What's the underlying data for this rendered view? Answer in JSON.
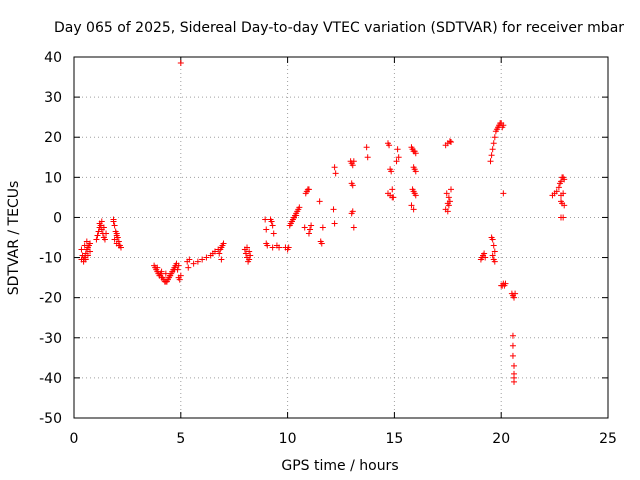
{
  "chart_data": {
    "type": "scatter",
    "title": "Day 065 of 2025, Sidereal Day-to-day VTEC variation (SDTVAR) for receiver mbar",
    "xlabel": "GPS time / hours",
    "ylabel": "SDTVAR / TECUs",
    "xlim": [
      0,
      25
    ],
    "ylim": [
      -50,
      40
    ],
    "xticks": [
      0,
      5,
      10,
      15,
      20,
      25
    ],
    "yticks": [
      -50,
      -40,
      -30,
      -20,
      -10,
      0,
      10,
      20,
      30,
      40
    ],
    "grid": true,
    "marker": "plus",
    "color": "#ff0000",
    "series": [
      {
        "name": "SDTVAR",
        "x": [
          0.35,
          0.4,
          0.45,
          0.5,
          0.55,
          0.6,
          0.65,
          0.7,
          0.75,
          0.35,
          0.45,
          0.55,
          0.65,
          0.75,
          0.5,
          0.6,
          1.05,
          1.1,
          1.15,
          1.2,
          1.25,
          1.3,
          1.35,
          1.4,
          1.45,
          1.2,
          1.3,
          1.4,
          1.5,
          1.85,
          1.9,
          1.95,
          2.0,
          2.05,
          2.1,
          2.15,
          2.2,
          1.9,
          2.0,
          2.1,
          1.85,
          2.0,
          3.75,
          3.8,
          3.85,
          3.9,
          3.95,
          4.0,
          4.05,
          4.1,
          4.15,
          4.2,
          4.25,
          4.3,
          4.35,
          4.4,
          4.45,
          4.5,
          4.55,
          4.6,
          4.65,
          4.7,
          4.75,
          4.8,
          4.85,
          4.9,
          4.95,
          5.0,
          3.9,
          4.1,
          4.3,
          4.5,
          4.7,
          4.9,
          5.3,
          5.35,
          5.4,
          5.6,
          5.8,
          6.0,
          6.2,
          6.4,
          6.5,
          6.6,
          6.75,
          6.85,
          6.9,
          6.95,
          7.0,
          6.8,
          6.9,
          8.0,
          8.05,
          8.1,
          8.15,
          8.2,
          8.25,
          8.1,
          8.2,
          8.95,
          9.0,
          9.05,
          9.2,
          9.25,
          9.3,
          9.35,
          9.0,
          9.3,
          9.5,
          9.6,
          9.9,
          10.0,
          10.05,
          10.1,
          10.15,
          10.2,
          10.25,
          10.3,
          10.35,
          10.4,
          10.45,
          10.5,
          10.55,
          10.2,
          10.4,
          10.85,
          10.9,
          10.95,
          11.0,
          10.8,
          11.0,
          11.1,
          11.05,
          11.5,
          11.55,
          11.6,
          11.65,
          12.15,
          12.2,
          12.25,
          12.2,
          12.95,
          13.0,
          13.05,
          13.1,
          13.0,
          13.05,
          13.0,
          13.05,
          13.1,
          13.7,
          13.75,
          14.7,
          14.75,
          14.8,
          14.85,
          14.9,
          14.95,
          14.7,
          14.8,
          14.9,
          15.1,
          15.2,
          15.15,
          15.8,
          15.85,
          15.9,
          15.95,
          16.0,
          15.9,
          15.95,
          16.0,
          15.85,
          15.9,
          15.95,
          16.0,
          15.8,
          15.9,
          17.4,
          17.5,
          17.6,
          17.65,
          17.45,
          17.55,
          17.6,
          17.5,
          17.55,
          17.65,
          17.4,
          17.5,
          19.05,
          19.1,
          19.15,
          19.2,
          19.25,
          19.5,
          19.55,
          19.6,
          19.65,
          19.7,
          19.75,
          19.8,
          19.85,
          19.9,
          19.95,
          20.0,
          20.05,
          20.1,
          19.55,
          19.6,
          19.65,
          19.7,
          19.6,
          19.65,
          19.7,
          20.0,
          20.05,
          20.1,
          20.15,
          20.2,
          20.1,
          20.5,
          20.55,
          20.6,
          20.65,
          20.55,
          20.55,
          20.55,
          20.6,
          20.6,
          20.6,
          20.6,
          22.4,
          22.5,
          22.6,
          22.7,
          22.75,
          22.8,
          22.85,
          22.9,
          22.95,
          22.8,
          22.9,
          22.8,
          22.85,
          22.95,
          22.8,
          22.9,
          5.0
        ],
        "y": [
          -8.0,
          -9.5,
          -10.5,
          -10.0,
          -9.0,
          -8.0,
          -7.5,
          -7.0,
          -6.5,
          -10.5,
          -11.0,
          -10.5,
          -9.5,
          -8.5,
          -7.0,
          -6.0,
          -5.5,
          -4.5,
          -3.5,
          -2.5,
          -2.0,
          -3.0,
          -4.0,
          -5.0,
          -5.5,
          -1.5,
          -1.0,
          -2.5,
          -4.0,
          -1.0,
          -2.0,
          -3.5,
          -4.5,
          -5.0,
          -6.0,
          -7.0,
          -7.5,
          -5.5,
          -6.5,
          -7.0,
          -0.5,
          -4.0,
          -12.0,
          -12.5,
          -13.0,
          -13.5,
          -14.0,
          -14.5,
          -14.0,
          -15.0,
          -15.0,
          -15.5,
          -16.0,
          -16.0,
          -16.0,
          -15.5,
          -15.0,
          -14.5,
          -14.0,
          -13.5,
          -13.0,
          -12.5,
          -12.0,
          -11.5,
          -13.0,
          -15.0,
          -15.5,
          -14.5,
          -12.5,
          -13.5,
          -14.0,
          -14.5,
          -13.0,
          -12.0,
          -11.0,
          -12.5,
          -10.5,
          -11.5,
          -11.0,
          -10.5,
          -10.0,
          -9.5,
          -9.0,
          -8.5,
          -8.0,
          -8.0,
          -7.5,
          -7.0,
          -6.5,
          -9.0,
          -10.5,
          -8.0,
          -9.0,
          -10.0,
          -11.0,
          -10.5,
          -9.5,
          -7.5,
          -8.5,
          -0.5,
          -3.0,
          -7.0,
          -0.5,
          -1.0,
          -2.0,
          -4.0,
          -6.5,
          -7.5,
          -7.0,
          -7.5,
          -7.5,
          -8.0,
          -7.5,
          -2.0,
          -1.5,
          -1.0,
          -0.5,
          0.0,
          0.5,
          1.0,
          1.5,
          2.0,
          2.5,
          -1.0,
          0.5,
          6.0,
          6.5,
          7.0,
          7.0,
          -2.5,
          -4.0,
          -2.0,
          -3.0,
          4.0,
          -6.0,
          -6.5,
          -2.5,
          2.0,
          12.5,
          11.0,
          -1.5,
          14.0,
          13.5,
          13.0,
          14.0,
          8.5,
          8.0,
          1.0,
          1.5,
          -2.5,
          17.5,
          15.0,
          18.5,
          18.0,
          12.0,
          11.5,
          7.0,
          5.0,
          6.0,
          5.5,
          5.0,
          14.0,
          15.0,
          17.0,
          17.5,
          17.0,
          16.5,
          16.5,
          16.0,
          12.5,
          12.0,
          11.5,
          7.0,
          6.5,
          6.0,
          5.5,
          3.0,
          2.0,
          18.0,
          18.5,
          19.0,
          18.8,
          6.0,
          5.0,
          4.0,
          3.5,
          3.0,
          7.0,
          2.0,
          1.5,
          -10.5,
          -10.0,
          -9.5,
          -9.0,
          -10.0,
          14.0,
          15.5,
          17.0,
          18.5,
          20.0,
          21.5,
          22.0,
          22.5,
          23.0,
          23.5,
          23.5,
          22.5,
          23.0,
          -5.0,
          -5.5,
          -7.0,
          -8.5,
          -9.5,
          -10.5,
          -11.0,
          -17.0,
          -17.0,
          -16.5,
          -17.0,
          -16.5,
          6.0,
          -19.0,
          -19.5,
          -20.0,
          -19.0,
          -29.5,
          -32.0,
          -34.5,
          -37.0,
          -39.0,
          -40.0,
          -41.0,
          5.5,
          6.0,
          6.5,
          7.5,
          8.5,
          9.0,
          10.0,
          10.0,
          9.5,
          5.5,
          6.0,
          4.0,
          3.5,
          3.0,
          0.0,
          0.0,
          38.5
        ]
      }
    ]
  }
}
